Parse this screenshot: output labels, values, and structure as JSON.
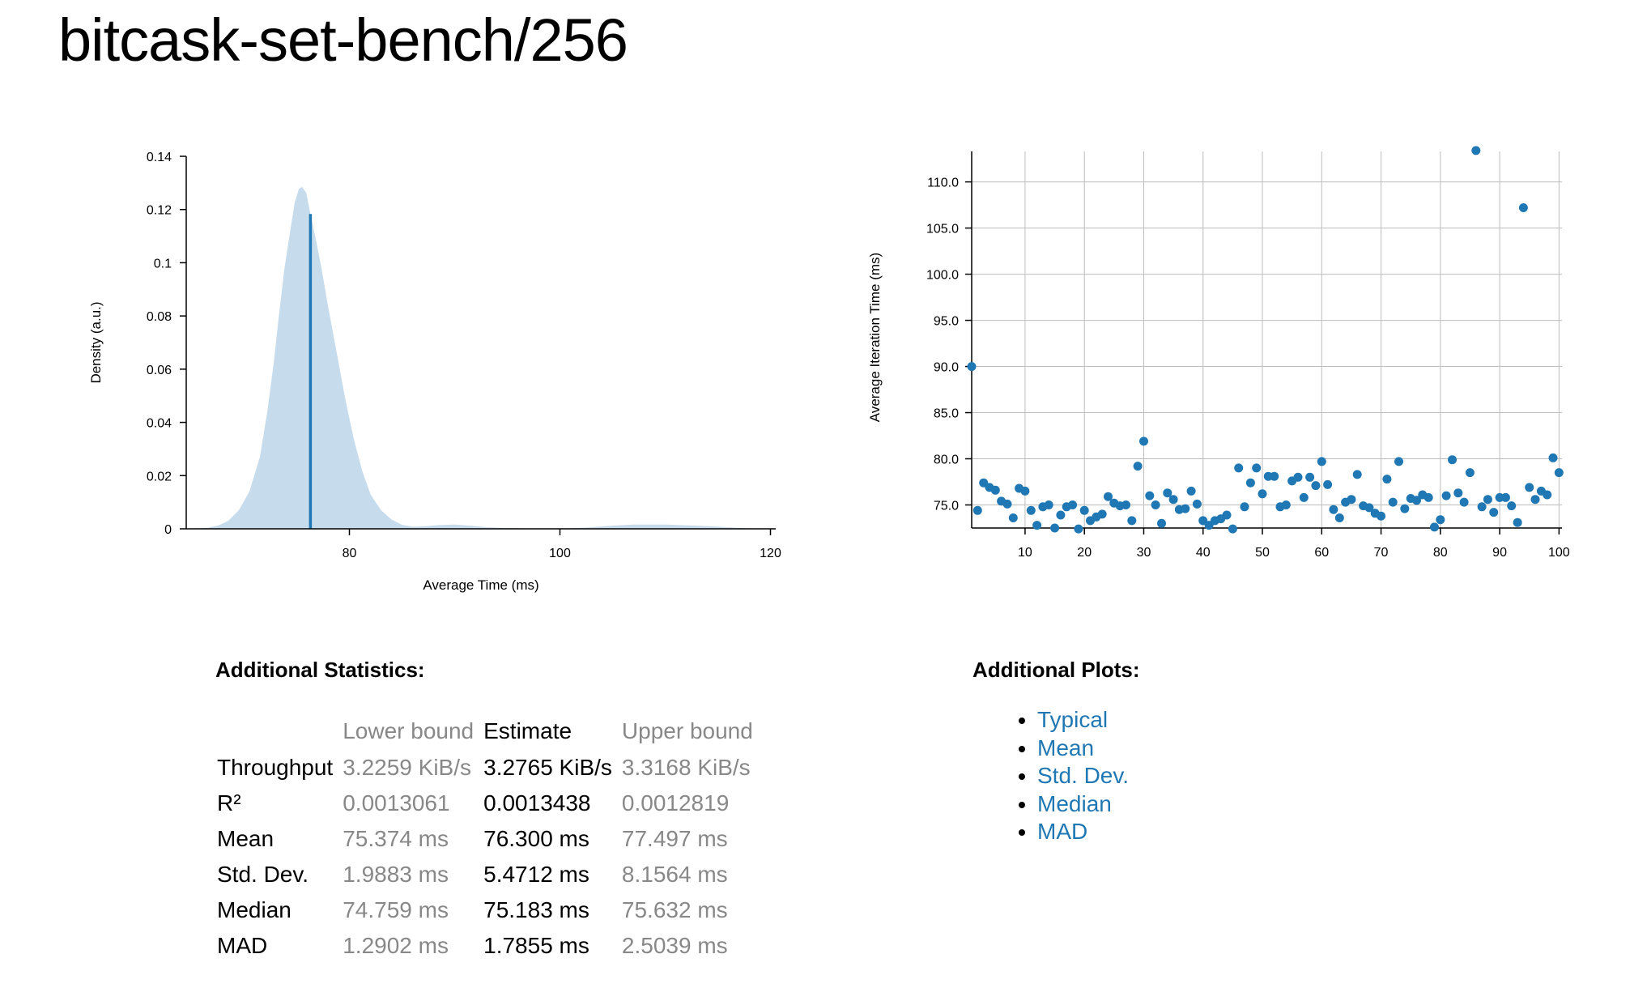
{
  "page_title": "bitcask-set-bench/256",
  "chart_data": [
    {
      "type": "area",
      "xlabel": "Average Time (ms)",
      "ylabel": "Density (a.u.)",
      "xlim": [
        64.5,
        120.5
      ],
      "ylim": [
        0,
        0.14
      ],
      "x_ticks": [
        80,
        100,
        120
      ],
      "y_ticks": [
        0,
        0.02,
        0.04,
        0.06,
        0.08,
        0.1,
        0.12,
        0.14
      ],
      "y_tick_labels": [
        "0",
        "0.02",
        "0.04",
        "0.06",
        "0.08",
        "0.1",
        "0.12",
        "0.14"
      ],
      "x_tick_labels": [
        "80",
        "100",
        "120"
      ],
      "fill_color": "#c6dbeb",
      "line_color": "#1f78b4",
      "mean_line": {
        "x": 76.3,
        "y": 0.1183
      },
      "density": [
        [
          65.0,
          0.0
        ],
        [
          66.5,
          0.0004
        ],
        [
          67.5,
          0.0012
        ],
        [
          68.5,
          0.003
        ],
        [
          69.5,
          0.007
        ],
        [
          70.5,
          0.014
        ],
        [
          71.5,
          0.027
        ],
        [
          72.2,
          0.044
        ],
        [
          72.8,
          0.062
        ],
        [
          73.3,
          0.08
        ],
        [
          73.8,
          0.097
        ],
        [
          74.3,
          0.11
        ],
        [
          74.8,
          0.1225
        ],
        [
          75.2,
          0.1278
        ],
        [
          75.5,
          0.1285
        ],
        [
          75.9,
          0.1262
        ],
        [
          76.3,
          0.1183
        ],
        [
          76.8,
          0.109
        ],
        [
          77.3,
          0.099
        ],
        [
          78.0,
          0.083
        ],
        [
          78.8,
          0.066
        ],
        [
          79.6,
          0.049
        ],
        [
          80.4,
          0.034
        ],
        [
          81.2,
          0.022
        ],
        [
          82.0,
          0.013
        ],
        [
          83.0,
          0.007
        ],
        [
          84.0,
          0.0035
        ],
        [
          85.0,
          0.0015
        ],
        [
          86.0,
          0.0008
        ],
        [
          87.0,
          0.0009
        ],
        [
          88.5,
          0.0014
        ],
        [
          90.0,
          0.0016
        ],
        [
          91.5,
          0.0012
        ],
        [
          93.0,
          0.0006
        ],
        [
          95.0,
          0.0003
        ],
        [
          98.0,
          0.0001
        ],
        [
          101.0,
          0.0002
        ],
        [
          103.0,
          0.0006
        ],
        [
          105.0,
          0.0012
        ],
        [
          107.0,
          0.0016
        ],
        [
          110.0,
          0.0016
        ],
        [
          113.0,
          0.0012
        ],
        [
          115.5,
          0.0007
        ],
        [
          117.0,
          0.0004
        ],
        [
          118.5,
          0.0
        ]
      ]
    },
    {
      "type": "scatter",
      "xlabel": "",
      "ylabel": "Average Iteration Time (ms)",
      "xlim": [
        1,
        100.5
      ],
      "ylim": [
        72.5,
        113.3
      ],
      "x_ticks": [
        10,
        20,
        30,
        40,
        50,
        60,
        70,
        80,
        90,
        100
      ],
      "x_tick_labels": [
        "10",
        "20",
        "30",
        "40",
        "50",
        "60",
        "70",
        "80",
        "90",
        "100"
      ],
      "y_ticks": [
        75,
        80,
        85,
        90,
        95,
        100,
        105,
        110
      ],
      "y_tick_labels": [
        "75.0",
        "80.0",
        "85.0",
        "90.0",
        "95.0",
        "100.0",
        "105.0",
        "110.0"
      ],
      "grid": true,
      "point_color": "#1f78b4",
      "points": [
        [
          1,
          90.0
        ],
        [
          2,
          74.4
        ],
        [
          3,
          77.4
        ],
        [
          4,
          76.9
        ],
        [
          5,
          76.6
        ],
        [
          6,
          75.4
        ],
        [
          7,
          75.1
        ],
        [
          8,
          73.6
        ],
        [
          9,
          76.8
        ],
        [
          10,
          76.5
        ],
        [
          11,
          74.4
        ],
        [
          12,
          72.8
        ],
        [
          13,
          74.8
        ],
        [
          14,
          75.0
        ],
        [
          15,
          72.5
        ],
        [
          16,
          73.9
        ],
        [
          17,
          74.8
        ],
        [
          18,
          75.0
        ],
        [
          19,
          72.4
        ],
        [
          20,
          74.4
        ],
        [
          21,
          73.3
        ],
        [
          22,
          73.7
        ],
        [
          23,
          74.0
        ],
        [
          24,
          75.9
        ],
        [
          25,
          75.2
        ],
        [
          26,
          74.9
        ],
        [
          27,
          75.0
        ],
        [
          28,
          73.3
        ],
        [
          29,
          79.2
        ],
        [
          30,
          81.9
        ],
        [
          31,
          76.0
        ],
        [
          32,
          75.0
        ],
        [
          33,
          73.0
        ],
        [
          34,
          76.3
        ],
        [
          35,
          75.6
        ],
        [
          36,
          74.5
        ],
        [
          37,
          74.6
        ],
        [
          38,
          76.5
        ],
        [
          39,
          75.1
        ],
        [
          40,
          73.3
        ],
        [
          41,
          72.8
        ],
        [
          42,
          73.3
        ],
        [
          43,
          73.5
        ],
        [
          44,
          73.9
        ],
        [
          45,
          72.4
        ],
        [
          46,
          79.0
        ],
        [
          47,
          74.8
        ],
        [
          48,
          77.4
        ],
        [
          49,
          79.0
        ],
        [
          50,
          76.2
        ],
        [
          51,
          78.1
        ],
        [
          52,
          78.1
        ],
        [
          53,
          74.8
        ],
        [
          54,
          75.0
        ],
        [
          55,
          77.6
        ],
        [
          56,
          78.0
        ],
        [
          57,
          75.8
        ],
        [
          58,
          78.0
        ],
        [
          59,
          77.1
        ],
        [
          60,
          79.7
        ],
        [
          61,
          77.2
        ],
        [
          62,
          74.5
        ],
        [
          63,
          73.6
        ],
        [
          64,
          75.3
        ],
        [
          65,
          75.6
        ],
        [
          66,
          78.3
        ],
        [
          67,
          74.9
        ],
        [
          68,
          74.7
        ],
        [
          69,
          74.1
        ],
        [
          70,
          73.8
        ],
        [
          71,
          77.8
        ],
        [
          72,
          75.3
        ],
        [
          73,
          79.7
        ],
        [
          74,
          74.6
        ],
        [
          75,
          75.7
        ],
        [
          76,
          75.5
        ],
        [
          77,
          76.1
        ],
        [
          78,
          75.8
        ],
        [
          79,
          72.6
        ],
        [
          80,
          73.4
        ],
        [
          81,
          76.0
        ],
        [
          82,
          79.9
        ],
        [
          83,
          76.3
        ],
        [
          84,
          75.3
        ],
        [
          85,
          78.5
        ],
        [
          86,
          113.4
        ],
        [
          87,
          74.8
        ],
        [
          88,
          75.6
        ],
        [
          89,
          74.2
        ],
        [
          90,
          75.8
        ],
        [
          91,
          75.8
        ],
        [
          92,
          74.9
        ],
        [
          93,
          73.1
        ],
        [
          94,
          107.2
        ],
        [
          95,
          76.9
        ],
        [
          96,
          75.6
        ],
        [
          97,
          76.5
        ],
        [
          98,
          76.1
        ],
        [
          99,
          80.1
        ],
        [
          100,
          78.5
        ]
      ]
    }
  ],
  "stats": {
    "title": "Additional Statistics:",
    "headers": [
      "",
      "Lower bound",
      "Estimate",
      "Upper bound"
    ],
    "rows": [
      {
        "name": "Throughput",
        "lower": "3.2259 KiB/s",
        "estimate": "3.2765 KiB/s",
        "upper": "3.3168 KiB/s"
      },
      {
        "name": "R²",
        "lower": "0.0013061",
        "estimate": "0.0013438",
        "upper": "0.0012819"
      },
      {
        "name": "Mean",
        "lower": "75.374 ms",
        "estimate": "76.300 ms",
        "upper": "77.497 ms"
      },
      {
        "name": "Std. Dev.",
        "lower": "1.9883 ms",
        "estimate": "5.4712 ms",
        "upper": "8.1564 ms"
      },
      {
        "name": "Median",
        "lower": "74.759 ms",
        "estimate": "75.183 ms",
        "upper": "75.632 ms"
      },
      {
        "name": "MAD",
        "lower": "1.2902 ms",
        "estimate": "1.7855 ms",
        "upper": "2.5039 ms"
      }
    ]
  },
  "plots": {
    "title": "Additional Plots:",
    "links": [
      "Typical",
      "Mean",
      "Std. Dev.",
      "Median",
      "MAD"
    ],
    "link_color": "#1f78b4"
  }
}
